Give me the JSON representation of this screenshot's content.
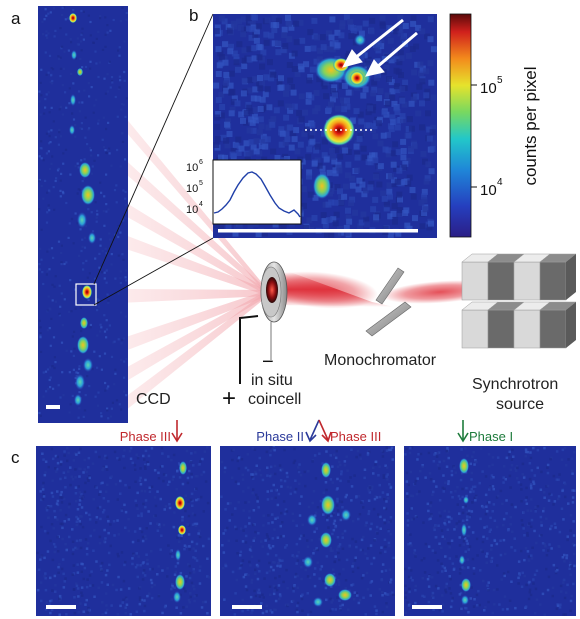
{
  "panel_labels": {
    "a": "a",
    "b": "b",
    "c": "c"
  },
  "colorbar": {
    "title": "counts per pixel",
    "ticks": [
      {
        "label": "10",
        "exp": "5"
      },
      {
        "label": "10",
        "exp": "4"
      }
    ],
    "colors": [
      "#2b1e86",
      "#253fbf",
      "#1f86d8",
      "#22c7c9",
      "#78d860",
      "#e6e32c",
      "#f38b1c",
      "#d0201c",
      "#5b0a0a"
    ]
  },
  "inset": {
    "ticks": [
      {
        "label": "10",
        "exp": "6"
      },
      {
        "label": "10",
        "exp": "5"
      },
      {
        "label": "10",
        "exp": "4"
      }
    ]
  },
  "setup": {
    "ccd_label": "CCD",
    "plus_sign": "+",
    "minus_sign": "−",
    "coincell_line1": "in situ",
    "coincell_line2": "coincell",
    "monochromator_label": "Monochromator",
    "source_line1": "Synchrotron",
    "source_line2": "source"
  },
  "phases": {
    "left": {
      "label": "Phase III",
      "color": "#c0282d"
    },
    "middle_left": {
      "label": "Phase II",
      "color": "#2b3a9a"
    },
    "middle_right": {
      "label": "Phase III",
      "color": "#c0282d"
    },
    "right": {
      "label": "Phase I",
      "color": "#1e7b3c"
    }
  },
  "colors": {
    "detector_bg": "#1f2f9c",
    "beam": "#e0323c",
    "fan": "#f2a7ae"
  }
}
